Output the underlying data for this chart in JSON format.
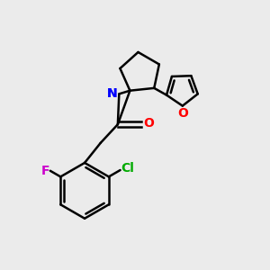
{
  "background_color": "#ebebeb",
  "bond_color": "#000000",
  "N_color": "#0000ff",
  "O_color": "#ff0000",
  "F_color": "#cc00cc",
  "Cl_color": "#00aa00",
  "figsize": [
    3.0,
    3.0
  ],
  "dpi": 100,
  "xlim": [
    0,
    10
  ],
  "ylim": [
    0,
    10
  ]
}
